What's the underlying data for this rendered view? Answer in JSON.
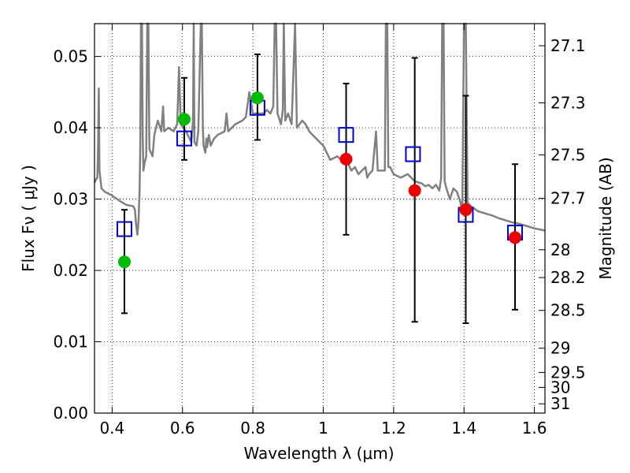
{
  "chart_data": {
    "type": "scatter",
    "xlabel": "Wavelength  λ (μm)",
    "ylabel": "Flux  Fν  ( μJy )",
    "ylabel_right": "Magnitude (AB)",
    "xlim": [
      0.35,
      1.63
    ],
    "ylim": [
      0.0,
      0.0546
    ],
    "x_ticks": [
      0.4,
      0.6,
      0.8,
      1.0,
      1.2,
      1.4,
      1.6
    ],
    "x_tick_labels": [
      "0.4",
      "0.6",
      "0.8",
      "1",
      "1.2",
      "1.4",
      "1.6"
    ],
    "y_ticks": [
      0.0,
      0.01,
      0.02,
      0.03,
      0.04,
      0.05
    ],
    "y_tick_labels": [
      "0.00",
      "0.01",
      "0.02",
      "0.03",
      "0.04",
      "0.05"
    ],
    "right_ticks": [
      {
        "label": "27.1",
        "flux": 0.0515
      },
      {
        "label": "27.3",
        "flux": 0.0435
      },
      {
        "label": "27.5",
        "flux": 0.0362
      },
      {
        "label": "27.7",
        "flux": 0.0301
      },
      {
        "label": "28",
        "flux": 0.0229
      },
      {
        "label": "28.2",
        "flux": 0.019
      },
      {
        "label": "28.5",
        "flux": 0.0144
      },
      {
        "label": "29",
        "flux": 0.0091
      },
      {
        "label": "29.5",
        "flux": 0.0057
      },
      {
        "label": "30",
        "flux": 0.0036
      },
      {
        "label": "31",
        "flux": 0.0013
      }
    ],
    "grid": true,
    "series": [
      {
        "kind": "line",
        "color": "#808080",
        "points": [
          [
            0.35,
            0.0323
          ],
          [
            0.355,
            0.0328
          ],
          [
            0.358,
            0.033
          ],
          [
            0.36,
            0.037
          ],
          [
            0.362,
            0.0455
          ],
          [
            0.364,
            0.034
          ],
          [
            0.37,
            0.0315
          ],
          [
            0.38,
            0.031
          ],
          [
            0.4,
            0.0305
          ],
          [
            0.42,
            0.0298
          ],
          [
            0.44,
            0.0292
          ],
          [
            0.46,
            0.029
          ],
          [
            0.465,
            0.0285
          ],
          [
            0.468,
            0.0265
          ],
          [
            0.472,
            0.025
          ],
          [
            0.475,
            0.027
          ],
          [
            0.478,
            0.031
          ],
          [
            0.48,
            0.037
          ],
          [
            0.482,
            0.055
          ],
          [
            0.485,
            0.055
          ],
          [
            0.487,
            0.039
          ],
          [
            0.489,
            0.034
          ],
          [
            0.492,
            0.035
          ],
          [
            0.497,
            0.036
          ],
          [
            0.5,
            0.055
          ],
          [
            0.503,
            0.055
          ],
          [
            0.506,
            0.037
          ],
          [
            0.515,
            0.036
          ],
          [
            0.52,
            0.039
          ],
          [
            0.53,
            0.041
          ],
          [
            0.54,
            0.0395
          ],
          [
            0.545,
            0.043
          ],
          [
            0.548,
            0.0395
          ],
          [
            0.56,
            0.04
          ],
          [
            0.575,
            0.0395
          ],
          [
            0.585,
            0.0405
          ],
          [
            0.59,
            0.0485
          ],
          [
            0.595,
            0.0405
          ],
          [
            0.61,
            0.0395
          ],
          [
            0.625,
            0.038
          ],
          [
            0.63,
            0.041
          ],
          [
            0.632,
            0.055
          ],
          [
            0.634,
            0.038
          ],
          [
            0.64,
            0.0375
          ],
          [
            0.645,
            0.0395
          ],
          [
            0.652,
            0.055
          ],
          [
            0.655,
            0.055
          ],
          [
            0.658,
            0.04
          ],
          [
            0.66,
            0.0375
          ],
          [
            0.665,
            0.0365
          ],
          [
            0.668,
            0.0385
          ],
          [
            0.67,
            0.0373
          ],
          [
            0.675,
            0.039
          ],
          [
            0.68,
            0.0375
          ],
          [
            0.69,
            0.0385
          ],
          [
            0.7,
            0.039
          ],
          [
            0.72,
            0.0395
          ],
          [
            0.725,
            0.042
          ],
          [
            0.73,
            0.0395
          ],
          [
            0.75,
            0.0405
          ],
          [
            0.77,
            0.041
          ],
          [
            0.78,
            0.0415
          ],
          [
            0.79,
            0.045
          ],
          [
            0.8,
            0.042
          ],
          [
            0.81,
            0.042
          ],
          [
            0.82,
            0.042
          ],
          [
            0.83,
            0.042
          ],
          [
            0.84,
            0.0425
          ],
          [
            0.85,
            0.042
          ],
          [
            0.858,
            0.043
          ],
          [
            0.862,
            0.055
          ],
          [
            0.866,
            0.055
          ],
          [
            0.87,
            0.042
          ],
          [
            0.88,
            0.0405
          ],
          [
            0.885,
            0.0425
          ],
          [
            0.888,
            0.055
          ],
          [
            0.892,
            0.041
          ],
          [
            0.9,
            0.042
          ],
          [
            0.91,
            0.0405
          ],
          [
            0.92,
            0.055
          ],
          [
            0.925,
            0.04
          ],
          [
            0.94,
            0.041
          ],
          [
            0.95,
            0.0405
          ],
          [
            0.96,
            0.0395
          ],
          [
            0.98,
            0.0385
          ],
          [
            1.0,
            0.0375
          ],
          [
            1.02,
            0.0355
          ],
          [
            1.04,
            0.036
          ],
          [
            1.05,
            0.0355
          ],
          [
            1.06,
            0.035
          ],
          [
            1.07,
            0.035
          ],
          [
            1.08,
            0.034
          ],
          [
            1.09,
            0.0345
          ],
          [
            1.1,
            0.0335
          ],
          [
            1.12,
            0.0345
          ],
          [
            1.125,
            0.033
          ],
          [
            1.13,
            0.0335
          ],
          [
            1.14,
            0.034
          ],
          [
            1.15,
            0.0395
          ],
          [
            1.155,
            0.034
          ],
          [
            1.165,
            0.034
          ],
          [
            1.175,
            0.034
          ],
          [
            1.178,
            0.055
          ],
          [
            1.182,
            0.055
          ],
          [
            1.185,
            0.0345
          ],
          [
            1.19,
            0.0345
          ],
          [
            1.2,
            0.0335
          ],
          [
            1.22,
            0.033
          ],
          [
            1.24,
            0.0335
          ],
          [
            1.26,
            0.0325
          ],
          [
            1.28,
            0.0322
          ],
          [
            1.29,
            0.0318
          ],
          [
            1.3,
            0.032
          ],
          [
            1.31,
            0.0315
          ],
          [
            1.32,
            0.032
          ],
          [
            1.33,
            0.0312
          ],
          [
            1.335,
            0.033
          ],
          [
            1.338,
            0.055
          ],
          [
            1.342,
            0.055
          ],
          [
            1.345,
            0.0325
          ],
          [
            1.35,
            0.0315
          ],
          [
            1.36,
            0.03
          ],
          [
            1.37,
            0.0315
          ],
          [
            1.38,
            0.031
          ],
          [
            1.39,
            0.0295
          ],
          [
            1.395,
            0.028
          ],
          [
            1.4,
            0.055
          ],
          [
            1.405,
            0.055
          ],
          [
            1.41,
            0.0295
          ],
          [
            1.42,
            0.029
          ],
          [
            1.44,
            0.0283
          ],
          [
            1.46,
            0.028
          ],
          [
            1.48,
            0.0277
          ],
          [
            1.5,
            0.0273
          ],
          [
            1.52,
            0.027
          ],
          [
            1.54,
            0.0267
          ],
          [
            1.56,
            0.0265
          ],
          [
            1.58,
            0.0262
          ],
          [
            1.6,
            0.0259
          ],
          [
            1.63,
            0.0256
          ]
        ]
      },
      {
        "kind": "errorbar",
        "color": "#000000",
        "points": [
          {
            "x": 0.435,
            "lo": 0.014,
            "hi": 0.0285
          },
          {
            "x": 0.605,
            "lo": 0.0355,
            "hi": 0.047
          },
          {
            "x": 0.813,
            "lo": 0.0383,
            "hi": 0.0503
          },
          {
            "x": 1.065,
            "lo": 0.025,
            "hi": 0.0462
          },
          {
            "x": 1.26,
            "lo": 0.0128,
            "hi": 0.0498
          },
          {
            "x": 1.405,
            "lo": 0.0126,
            "hi": 0.0445
          },
          {
            "x": 1.545,
            "lo": 0.0145,
            "hi": 0.0349
          }
        ]
      },
      {
        "kind": "open-square",
        "color": "#0000cc",
        "points": [
          [
            0.435,
            0.0258
          ],
          [
            0.605,
            0.0385
          ],
          [
            0.813,
            0.0428
          ],
          [
            1.065,
            0.039
          ],
          [
            1.255,
            0.0363
          ],
          [
            1.405,
            0.0278
          ],
          [
            1.545,
            0.0253
          ]
        ]
      },
      {
        "kind": "filled-circle",
        "color": "#00bb00",
        "points": [
          [
            0.435,
            0.0212
          ],
          [
            0.605,
            0.0412
          ],
          [
            0.813,
            0.0442
          ]
        ]
      },
      {
        "kind": "filled-circle",
        "color": "#ee0000",
        "points": [
          [
            1.065,
            0.0356
          ],
          [
            1.26,
            0.0312
          ],
          [
            1.405,
            0.0285
          ],
          [
            1.545,
            0.0246
          ]
        ]
      }
    ]
  }
}
